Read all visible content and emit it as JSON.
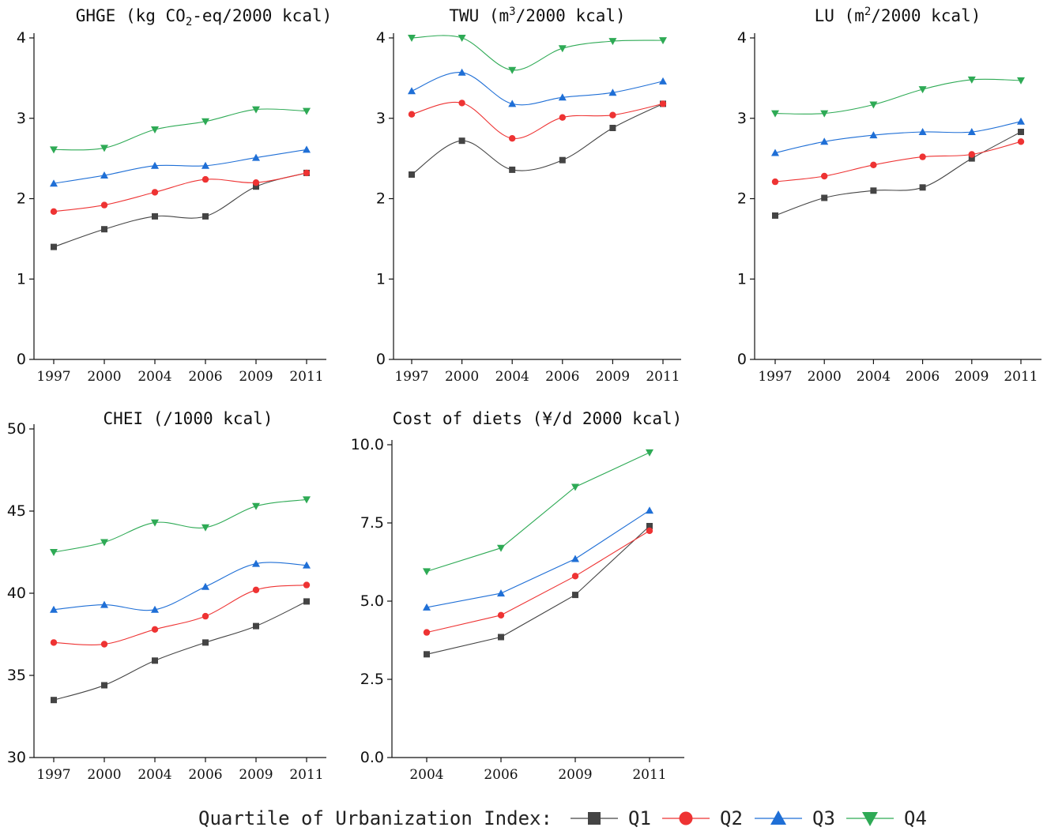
{
  "legend": {
    "title": "Quartile of Urbanization Index:",
    "items": [
      {
        "label": "Q1",
        "color": "#444444",
        "marker": "square"
      },
      {
        "label": "Q2",
        "color": "#ee3333",
        "marker": "circle"
      },
      {
        "label": "Q3",
        "color": "#1f6fd6",
        "marker": "triangle-up"
      },
      {
        "label": "Q4",
        "color": "#2eaa55",
        "marker": "triangle-down"
      }
    ]
  },
  "chart_data": [
    {
      "type": "line",
      "title": "GHGE (kg CO2-eq/2000 kcal)",
      "title_parts": {
        "before": "GHGE (kg CO",
        "sub": "2",
        "after": "-eq/2000 kcal)"
      },
      "categories": [
        "1997",
        "2000",
        "2004",
        "2006",
        "2009",
        "2011"
      ],
      "ylim": [
        0,
        4
      ],
      "yticks": [
        0,
        1,
        2,
        3,
        4
      ],
      "ytick_labels": [
        "0",
        "1",
        "2",
        "3",
        "4"
      ],
      "series": [
        {
          "name": "Q1",
          "values": [
            1.4,
            1.62,
            1.78,
            1.78,
            2.15,
            2.32
          ]
        },
        {
          "name": "Q2",
          "values": [
            1.84,
            1.92,
            2.08,
            2.24,
            2.2,
            2.32
          ]
        },
        {
          "name": "Q3",
          "values": [
            2.19,
            2.29,
            2.41,
            2.41,
            2.51,
            2.61
          ]
        },
        {
          "name": "Q4",
          "values": [
            2.61,
            2.63,
            2.86,
            2.96,
            3.11,
            3.09
          ]
        }
      ]
    },
    {
      "type": "line",
      "title": "TWU (m3/2000 kcal)",
      "title_parts": {
        "before": "TWU (m",
        "sup": "3",
        "after": "/2000 kcal)"
      },
      "categories": [
        "1997",
        "2000",
        "2004",
        "2006",
        "2009",
        "2011"
      ],
      "ylim": [
        0,
        4
      ],
      "yticks": [
        0,
        1,
        2,
        3,
        4
      ],
      "ytick_labels": [
        "0",
        "1",
        "2",
        "3",
        "4"
      ],
      "series": [
        {
          "name": "Q1",
          "values": [
            2.3,
            2.72,
            2.36,
            2.48,
            2.88,
            3.18
          ]
        },
        {
          "name": "Q2",
          "values": [
            3.05,
            3.19,
            2.75,
            3.01,
            3.04,
            3.18
          ]
        },
        {
          "name": "Q3",
          "values": [
            3.34,
            3.57,
            3.18,
            3.26,
            3.32,
            3.46
          ]
        },
        {
          "name": "Q4",
          "values": [
            4.0,
            4.0,
            3.6,
            3.87,
            3.96,
            3.97
          ]
        }
      ]
    },
    {
      "type": "line",
      "title": "LU (m2/2000 kcal)",
      "title_parts": {
        "before": "LU (m",
        "sup": "2",
        "after": "/2000 kcal)"
      },
      "categories": [
        "1997",
        "2000",
        "2004",
        "2006",
        "2009",
        "2011"
      ],
      "ylim": [
        0,
        4
      ],
      "yticks": [
        0,
        1,
        2,
        3,
        4
      ],
      "ytick_labels": [
        "0",
        "1",
        "2",
        "3",
        "4"
      ],
      "series": [
        {
          "name": "Q1",
          "values": [
            1.79,
            2.01,
            2.1,
            2.14,
            2.5,
            2.83
          ]
        },
        {
          "name": "Q2",
          "values": [
            2.21,
            2.28,
            2.42,
            2.52,
            2.55,
            2.71
          ]
        },
        {
          "name": "Q3",
          "values": [
            2.57,
            2.71,
            2.79,
            2.83,
            2.83,
            2.96
          ]
        },
        {
          "name": "Q4",
          "values": [
            3.06,
            3.06,
            3.17,
            3.36,
            3.48,
            3.47
          ]
        }
      ]
    },
    {
      "type": "line",
      "title": "CHEI (/1000 kcal)",
      "title_parts": {
        "before": "CHEI (/1000 kcal)"
      },
      "categories": [
        "1997",
        "2000",
        "2004",
        "2006",
        "2009",
        "2011"
      ],
      "ylim": [
        30,
        50
      ],
      "yticks": [
        30,
        35,
        40,
        45,
        50
      ],
      "ytick_labels": [
        "30",
        "35",
        "40",
        "45",
        "50"
      ],
      "series": [
        {
          "name": "Q1",
          "values": [
            33.5,
            34.4,
            35.9,
            37.0,
            38.0,
            39.5
          ]
        },
        {
          "name": "Q2",
          "values": [
            37.0,
            36.9,
            37.8,
            38.6,
            40.2,
            40.5
          ]
        },
        {
          "name": "Q3",
          "values": [
            39.0,
            39.3,
            39.0,
            40.4,
            41.8,
            41.7
          ]
        },
        {
          "name": "Q4",
          "values": [
            42.5,
            43.1,
            44.3,
            44.0,
            45.3,
            45.7
          ]
        }
      ]
    },
    {
      "type": "line",
      "title": "Cost of diets (¥/d 2000 kcal)",
      "title_parts": {
        "before": "Cost of diets (¥/d 2000 kcal)"
      },
      "categories": [
        "2004",
        "2006",
        "2009",
        "2011"
      ],
      "ylim": [
        0,
        10
      ],
      "yticks": [
        0,
        2.5,
        5,
        7.5,
        10
      ],
      "ytick_labels": [
        "0.0",
        "2.5",
        "5.0",
        "7.5",
        "10.0"
      ],
      "series": [
        {
          "name": "Q1",
          "values": [
            3.3,
            3.85,
            5.2,
            7.4
          ]
        },
        {
          "name": "Q2",
          "values": [
            4.0,
            4.55,
            5.8,
            7.25
          ]
        },
        {
          "name": "Q3",
          "values": [
            4.8,
            5.25,
            6.35,
            7.9
          ]
        },
        {
          "name": "Q4",
          "values": [
            5.95,
            6.7,
            8.65,
            9.75
          ]
        }
      ]
    }
  ]
}
